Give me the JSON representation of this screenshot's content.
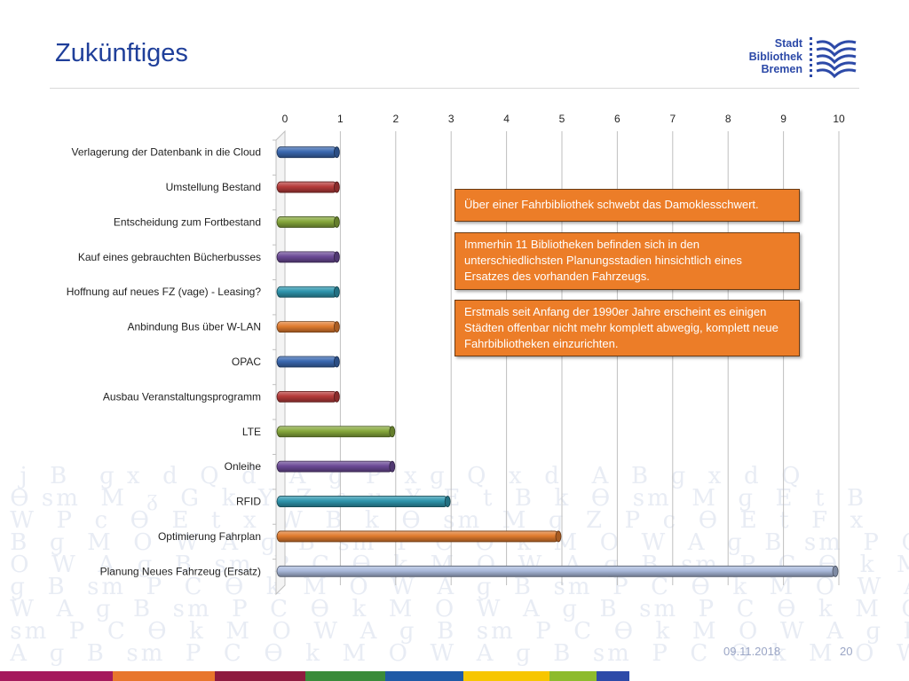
{
  "slide": {
    "title": "Zukünftiges",
    "date": "09.11.2018",
    "page_number": "20"
  },
  "logo": {
    "line1": "Stadt",
    "line2": "Bibliothek",
    "line3": "Bremen",
    "color": "#2d4aa8"
  },
  "callouts": [
    "Über einer Fahrbibliothek schwebt das Damoklesschwert.",
    "Immerhin 11 Bibliotheken befinden sich in den unterschiedlichsten Planungsstadien hinsichtlich eines Ersatzes des vorhanden Fahrzeugs.",
    "Erstmals seit Anfang der 1990er Jahre erscheint es einigen Städten offenbar nicht mehr komplett abwegig, komplett neue Fahrbibliotheken einzurichten."
  ],
  "bottom_strip_colors": [
    "#a5195c",
    "#e8762c",
    "#8e1b3f",
    "#3a8b3a",
    "#1f5aa6",
    "#f7c600",
    "#8dbb2c",
    "#2d4aa8",
    "#ffffff"
  ],
  "chart_data": {
    "type": "bar",
    "orientation": "horizontal",
    "categories": [
      "Verlagerung der Datenbank in die Cloud",
      "Umstellung Bestand",
      "Entscheidung zum Fortbestand",
      "Kauf eines gebrauchten Bücherbusses",
      "Hoffnung auf neues FZ (vage) - Leasing?",
      "Anbindung Bus über W-LAN",
      "OPAC",
      "Ausbau Veranstaltungsprogramm",
      "LTE",
      "Onleihe",
      "RFID",
      "Optimierung Fahrplan",
      "Planung Neues Fahrzeug (Ersatz)"
    ],
    "values": [
      1,
      1,
      1,
      1,
      1,
      1,
      1,
      1,
      2,
      2,
      3,
      5,
      10
    ],
    "bar_colors": [
      "#3a68b0",
      "#b63b3a",
      "#86a83b",
      "#6b4a96",
      "#2e95ad",
      "#e07b2e",
      "#3a68b0",
      "#b63b3a",
      "#86a83b",
      "#6b4a96",
      "#2e95ad",
      "#e07b2e",
      "#a9b9db"
    ],
    "xlim": [
      0,
      10
    ],
    "xticks": [
      "0",
      "1",
      "2",
      "3",
      "4",
      "5",
      "6",
      "7",
      "8",
      "9",
      "10"
    ],
    "axis_position": "top",
    "grid": true,
    "legend": "none",
    "title": "",
    "xlabel": "",
    "ylabel": ""
  }
}
